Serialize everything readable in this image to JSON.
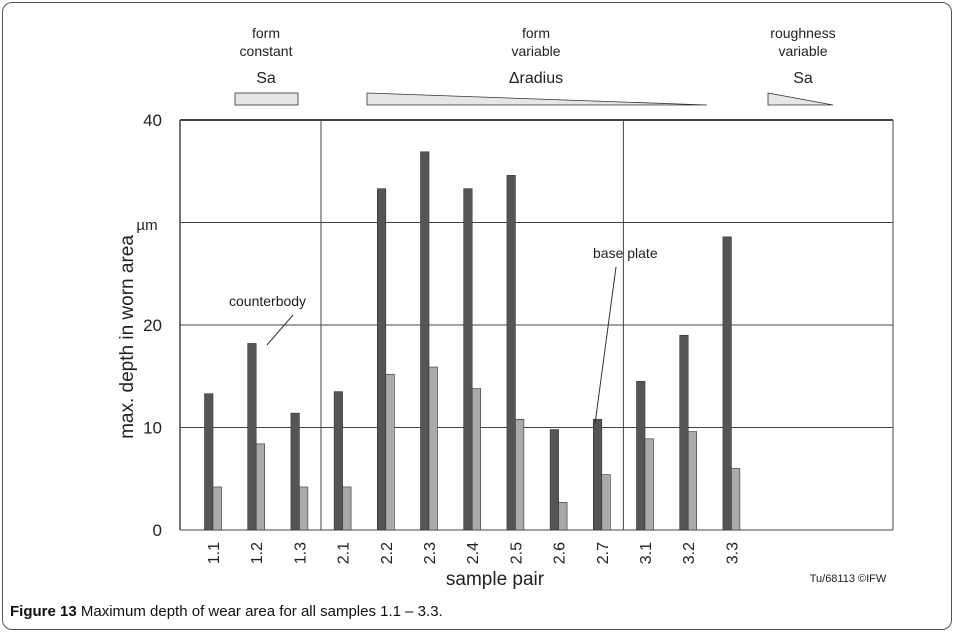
{
  "chart_data": {
    "type": "bar",
    "categories": [
      "1.1",
      "1.2",
      "1.3",
      "2.1",
      "2.2",
      "2.3",
      "2.4",
      "2.5",
      "2.6",
      "2.7",
      "3.1",
      "3.2",
      "3.3"
    ],
    "series": [
      {
        "name": "counterbody",
        "values": [
          13.3,
          18.2,
          11.4,
          13.5,
          33.3,
          36.9,
          33.3,
          34.6,
          9.8,
          10.8,
          14.5,
          19.0,
          28.6
        ]
      },
      {
        "name": "base plate",
        "values": [
          4.2,
          8.4,
          4.2,
          4.2,
          15.2,
          15.9,
          13.8,
          10.8,
          2.7,
          5.4,
          8.9,
          9.6,
          6.0
        ]
      }
    ],
    "ylabel": "max. depth in worn area",
    "yunit": "µm",
    "xlabel": "sample pair",
    "ylim": [
      0,
      40
    ],
    "yticks": [
      "0",
      "10",
      "20",
      "",
      "40"
    ],
    "grid": true,
    "groups": [
      {
        "line1": "form",
        "line2": "constant",
        "param": "Sa",
        "from": "1.1",
        "to": "1.3"
      },
      {
        "line1": "form",
        "line2": "variable",
        "param": "Δradius",
        "from": "2.1",
        "to": "2.7"
      },
      {
        "line1": "roughness",
        "line2": "variable",
        "param": "Sa",
        "from": "3.1",
        "to": "3.3"
      }
    ],
    "credit": "Tu/68113 ©IFW",
    "colors": {
      "counterbody": "#555555",
      "base_plate": "#aaaaaa",
      "grid": "#444444",
      "wedge": "#e6e6e6"
    }
  },
  "caption": {
    "label": "Figure 13",
    "text": "Maximum depth of wear area for all samples 1.1 – 3.3."
  }
}
